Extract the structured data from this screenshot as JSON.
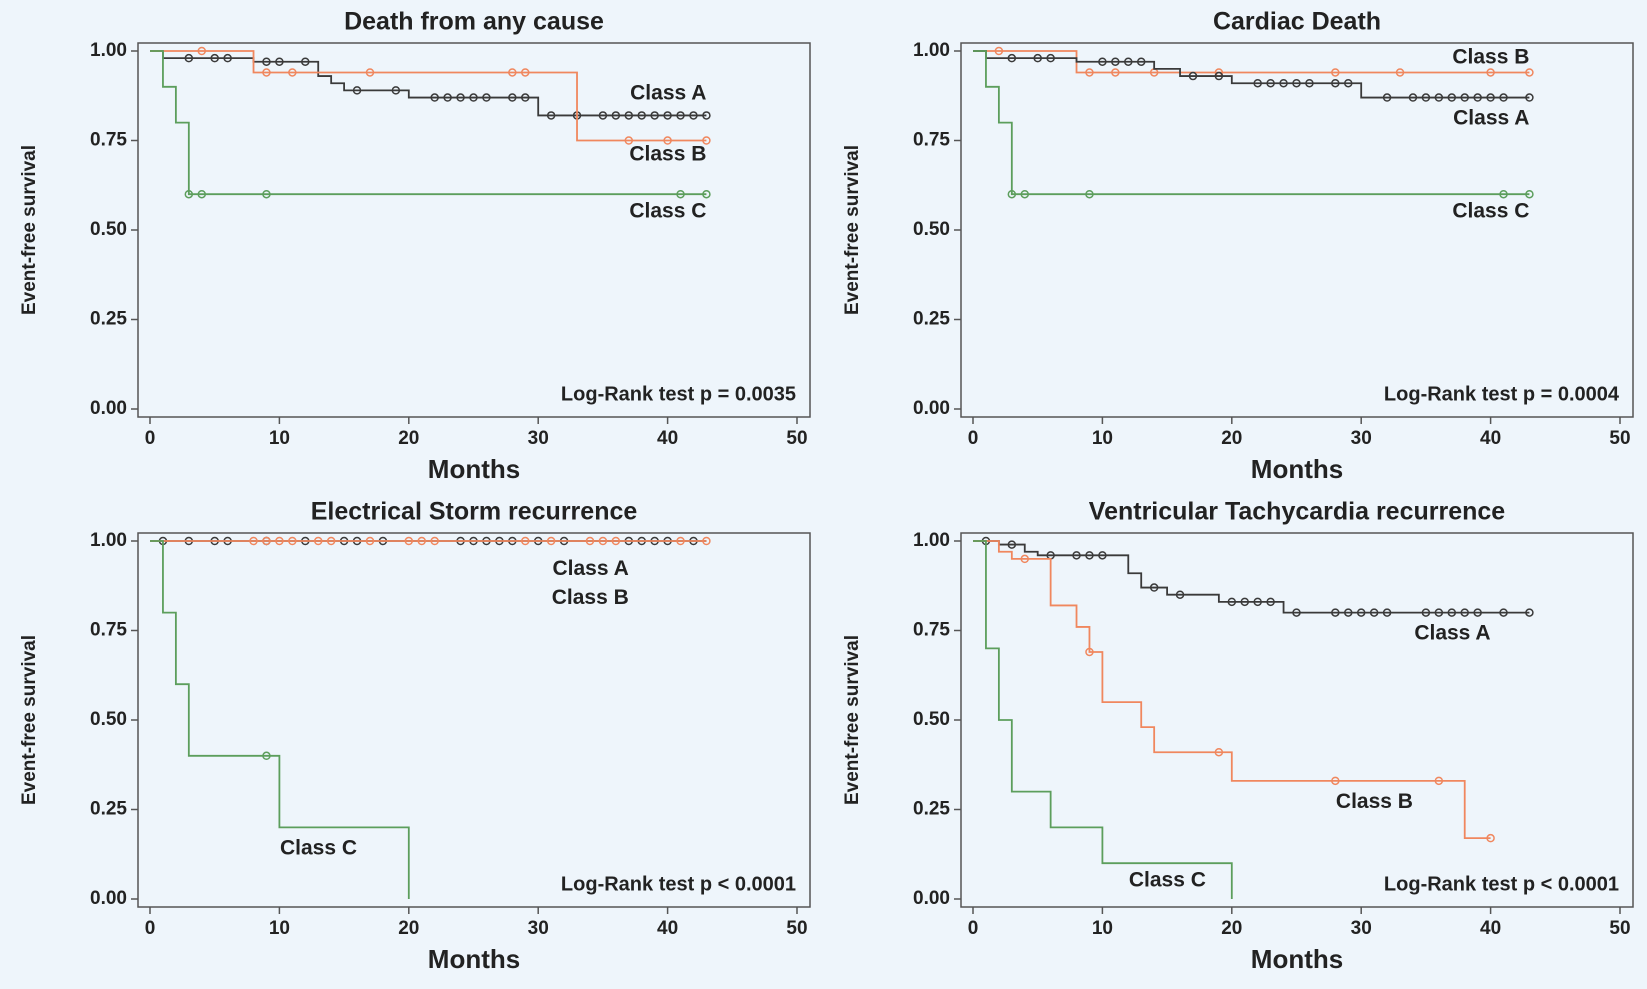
{
  "chart_data": [
    {
      "type": "step",
      "title": "Death from any cause",
      "xlabel": "Months",
      "ylabel": "Event-free survival",
      "annotation": "Log-Rank test p = 0.0035",
      "xlim": [
        0,
        50
      ],
      "ylim": [
        0,
        1
      ],
      "xticks": [
        0,
        10,
        20,
        30,
        40,
        50
      ],
      "yticks": [
        {
          "value": 0,
          "label": "0.00"
        },
        {
          "value": 0.25,
          "label": "0.25"
        },
        {
          "value": 0.5,
          "label": "0.50"
        },
        {
          "value": 0.75,
          "label": "0.75"
        },
        {
          "value": 1,
          "label": "1.00"
        }
      ],
      "series": [
        {
          "name": "Class A",
          "color": "#3a3a3a",
          "x": [
            0,
            1,
            8,
            13,
            14,
            15,
            20,
            30,
            43
          ],
          "values": [
            1,
            0.98,
            0.97,
            0.93,
            0.91,
            0.89,
            0.87,
            0.82,
            0.82
          ],
          "censor_x": [
            3,
            5,
            6,
            9,
            10,
            12,
            16,
            19,
            22,
            23,
            24,
            25,
            26,
            28,
            29,
            31,
            33,
            35,
            36,
            37,
            38,
            39,
            40,
            41,
            42,
            43
          ],
          "censor_values": [
            0.98,
            0.98,
            0.98,
            0.97,
            0.97,
            0.97,
            0.89,
            0.89,
            0.87,
            0.87,
            0.87,
            0.87,
            0.87,
            0.87,
            0.87,
            0.82,
            0.82,
            0.82,
            0.82,
            0.82,
            0.82,
            0.82,
            0.82,
            0.82,
            0.82,
            0.82
          ]
        },
        {
          "name": "Class B",
          "color": "#f0875e",
          "x": [
            0,
            8,
            33,
            43
          ],
          "values": [
            1,
            0.94,
            0.75,
            0.75
          ],
          "censor_x": [
            4,
            9,
            11,
            17,
            28,
            29,
            37,
            40,
            43
          ],
          "censor_values": [
            1,
            0.94,
            0.94,
            0.94,
            0.94,
            0.94,
            0.75,
            0.75,
            0.75
          ]
        },
        {
          "name": "Class C",
          "color": "#5c9e5c",
          "x": [
            0,
            1,
            2,
            3,
            43
          ],
          "values": [
            1,
            0.9,
            0.8,
            0.6,
            0.6
          ],
          "censor_x": [
            3,
            4,
            9,
            41,
            43
          ],
          "censor_values": [
            0.6,
            0.6,
            0.6,
            0.6,
            0.6
          ]
        }
      ]
    },
    {
      "type": "step",
      "title": "Cardiac Death",
      "xlabel": "Months",
      "ylabel": "Event-free survival",
      "annotation": "Log-Rank test p = 0.0004",
      "xlim": [
        0,
        50
      ],
      "ylim": [
        0,
        1
      ],
      "xticks": [
        0,
        10,
        20,
        30,
        40,
        50
      ],
      "yticks": [
        {
          "value": 0,
          "label": "0.00"
        },
        {
          "value": 0.25,
          "label": "0.25"
        },
        {
          "value": 0.5,
          "label": "0.50"
        },
        {
          "value": 0.75,
          "label": "0.75"
        },
        {
          "value": 1,
          "label": "1.00"
        }
      ],
      "series": [
        {
          "name": "Class B",
          "color": "#f0875e",
          "x": [
            0,
            8,
            43
          ],
          "values": [
            1,
            0.94,
            0.94
          ],
          "censor_x": [
            2,
            9,
            11,
            14,
            19,
            28,
            33,
            40,
            43
          ],
          "censor_values": [
            1,
            0.94,
            0.94,
            0.94,
            0.94,
            0.94,
            0.94,
            0.94,
            0.94
          ]
        },
        {
          "name": "Class A",
          "color": "#3a3a3a",
          "x": [
            0,
            1,
            8,
            14,
            16,
            20,
            30,
            43
          ],
          "values": [
            1,
            0.98,
            0.97,
            0.95,
            0.93,
            0.91,
            0.87,
            0.87
          ],
          "censor_x": [
            3,
            5,
            6,
            10,
            11,
            12,
            13,
            17,
            19,
            22,
            23,
            24,
            25,
            26,
            28,
            29,
            32,
            34,
            35,
            36,
            37,
            38,
            39,
            40,
            41,
            43
          ],
          "censor_values": [
            0.98,
            0.98,
            0.98,
            0.97,
            0.97,
            0.97,
            0.97,
            0.93,
            0.93,
            0.91,
            0.91,
            0.91,
            0.91,
            0.91,
            0.91,
            0.91,
            0.87,
            0.87,
            0.87,
            0.87,
            0.87,
            0.87,
            0.87,
            0.87,
            0.87,
            0.87
          ]
        },
        {
          "name": "Class C",
          "color": "#5c9e5c",
          "x": [
            0,
            1,
            2,
            3,
            43
          ],
          "values": [
            1,
            0.9,
            0.8,
            0.6,
            0.6
          ],
          "censor_x": [
            3,
            4,
            9,
            41,
            43
          ],
          "censor_values": [
            0.6,
            0.6,
            0.6,
            0.6,
            0.6
          ]
        }
      ]
    },
    {
      "type": "step",
      "title": "Electrical Storm recurrence",
      "xlabel": "Months",
      "ylabel": "Event-free survival",
      "annotation": "Log-Rank test p < 0.0001",
      "xlim": [
        0,
        50
      ],
      "ylim": [
        0,
        1
      ],
      "xticks": [
        0,
        10,
        20,
        30,
        40,
        50
      ],
      "yticks": [
        {
          "value": 0,
          "label": "0.00"
        },
        {
          "value": 0.25,
          "label": "0.25"
        },
        {
          "value": 0.5,
          "label": "0.50"
        },
        {
          "value": 0.75,
          "label": "0.75"
        },
        {
          "value": 1,
          "label": "1.00"
        }
      ],
      "series": [
        {
          "name": "Class A",
          "color": "#3a3a3a",
          "x": [
            0,
            43
          ],
          "values": [
            1,
            1
          ],
          "censor_x": [
            1,
            3,
            5,
            6,
            9,
            12,
            15,
            16,
            18,
            24,
            25,
            26,
            27,
            28,
            30,
            32,
            37,
            38,
            39,
            40,
            42
          ],
          "censor_values": [
            1,
            1,
            1,
            1,
            1,
            1,
            1,
            1,
            1,
            1,
            1,
            1,
            1,
            1,
            1,
            1,
            1,
            1,
            1,
            1,
            1
          ]
        },
        {
          "name": "Class B",
          "color": "#f0875e",
          "x": [
            0,
            43
          ],
          "values": [
            1,
            1
          ],
          "censor_x": [
            8,
            9,
            10,
            11,
            13,
            14,
            17,
            20,
            21,
            22,
            29,
            31,
            34,
            35,
            36,
            41,
            43
          ],
          "censor_values": [
            1,
            1,
            1,
            1,
            1,
            1,
            1,
            1,
            1,
            1,
            1,
            1,
            1,
            1,
            1,
            1,
            1
          ]
        },
        {
          "name": "Class C",
          "color": "#5c9e5c",
          "x": [
            0,
            1,
            2,
            3,
            10,
            20
          ],
          "values": [
            1,
            0.8,
            0.6,
            0.4,
            0.2,
            0
          ],
          "censor_x": [
            9
          ],
          "censor_values": [
            0.4
          ]
        }
      ]
    },
    {
      "type": "step",
      "title": "Ventricular Tachycardia recurrence",
      "xlabel": "Months",
      "ylabel": "Event-free survival",
      "annotation": "Log-Rank test p < 0.0001",
      "xlim": [
        0,
        50
      ],
      "ylim": [
        0,
        1
      ],
      "xticks": [
        0,
        10,
        20,
        30,
        40,
        50
      ],
      "yticks": [
        {
          "value": 0,
          "label": "0.00"
        },
        {
          "value": 0.25,
          "label": "0.25"
        },
        {
          "value": 0.5,
          "label": "0.50"
        },
        {
          "value": 0.75,
          "label": "0.75"
        },
        {
          "value": 1,
          "label": "1.00"
        }
      ],
      "series": [
        {
          "name": "Class A",
          "color": "#3a3a3a",
          "x": [
            0,
            2,
            4,
            5,
            12,
            13,
            15,
            19,
            24,
            43
          ],
          "values": [
            1,
            0.99,
            0.97,
            0.96,
            0.91,
            0.87,
            0.85,
            0.83,
            0.8,
            0.8
          ],
          "censor_x": [
            1,
            3,
            6,
            8,
            9,
            10,
            14,
            16,
            20,
            21,
            22,
            23,
            25,
            28,
            29,
            30,
            31,
            32,
            35,
            36,
            37,
            38,
            39,
            41,
            43
          ],
          "censor_values": [
            1,
            0.99,
            0.96,
            0.96,
            0.96,
            0.96,
            0.87,
            0.85,
            0.83,
            0.83,
            0.83,
            0.83,
            0.8,
            0.8,
            0.8,
            0.8,
            0.8,
            0.8,
            0.8,
            0.8,
            0.8,
            0.8,
            0.8,
            0.8,
            0.8
          ]
        },
        {
          "name": "Class B",
          "color": "#f0875e",
          "x": [
            0,
            2,
            3,
            6,
            8,
            9,
            10,
            13,
            14,
            20,
            38,
            40
          ],
          "values": [
            1,
            0.97,
            0.95,
            0.82,
            0.76,
            0.69,
            0.55,
            0.48,
            0.41,
            0.33,
            0.17,
            0.17
          ],
          "censor_x": [
            4,
            9,
            19,
            28,
            36,
            40
          ],
          "censor_values": [
            0.95,
            0.69,
            0.41,
            0.33,
            0.33,
            0.17
          ]
        },
        {
          "name": "Class C",
          "color": "#5c9e5c",
          "x": [
            0,
            1,
            2,
            3,
            6,
            10,
            20
          ],
          "values": [
            1,
            0.7,
            0.5,
            0.3,
            0.2,
            0.1,
            0
          ],
          "censor_x": [],
          "censor_values": []
        }
      ]
    }
  ]
}
